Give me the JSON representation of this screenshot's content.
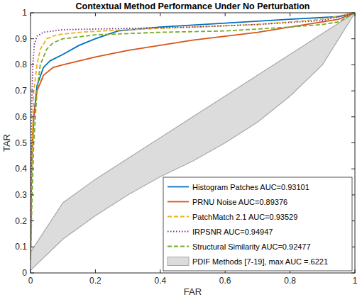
{
  "chart_data": {
    "type": "line",
    "title": "Contextual Method Performance Under No Perturbation",
    "x_label": "FAR",
    "y_label": "TAR",
    "xlim": [
      0,
      1
    ],
    "ylim": [
      0,
      1
    ],
    "xticks": [
      0,
      0.2,
      0.4,
      0.6,
      0.8,
      1
    ],
    "yticks": [
      0,
      0.1,
      0.2,
      0.3,
      0.4,
      0.5,
      0.6,
      0.7,
      0.8,
      0.9,
      1
    ],
    "grid": false,
    "legend": "southeast",
    "series": [
      {
        "name": "Histogram Patches AUC=0.93101",
        "color": "#0072bd",
        "line_style": "solid",
        "x": [
          0,
          0.003,
          0.01,
          0.02,
          0.04,
          0.06,
          0.1,
          0.15,
          0.2,
          0.27,
          0.4,
          0.6,
          0.8,
          0.95,
          1
        ],
        "values": [
          0.05,
          0.4,
          0.6,
          0.72,
          0.79,
          0.815,
          0.84,
          0.875,
          0.9,
          0.93,
          0.945,
          0.96,
          0.975,
          0.985,
          1
        ]
      },
      {
        "name": "PRNU Noise AUC=0.89376",
        "color": "#d95319",
        "line_style": "solid",
        "x": [
          0,
          0.003,
          0.01,
          0.02,
          0.04,
          0.07,
          0.1,
          0.2,
          0.3,
          0.4,
          0.5,
          0.6,
          0.7,
          0.8,
          0.9,
          0.95,
          1
        ],
        "values": [
          0.05,
          0.45,
          0.6,
          0.7,
          0.76,
          0.79,
          0.8,
          0.83,
          0.855,
          0.875,
          0.895,
          0.91,
          0.925,
          0.945,
          0.965,
          0.975,
          1
        ]
      },
      {
        "name": "PatchMatch 2.1 AUC=0.93529",
        "color": "#edb120",
        "line_style": "dashed",
        "x": [
          0,
          0.005,
          0.01,
          0.02,
          0.03,
          0.05,
          0.08,
          0.15,
          0.3,
          0.5,
          0.7,
          0.9,
          1
        ],
        "values": [
          0.05,
          0.5,
          0.7,
          0.8,
          0.86,
          0.9,
          0.915,
          0.925,
          0.935,
          0.945,
          0.955,
          0.975,
          1
        ]
      },
      {
        "name": "IRPSNR AUC=0.94947",
        "color": "#7e2f8e",
        "line_style": "dotted",
        "x": [
          0,
          0.003,
          0.007,
          0.012,
          0.02,
          0.04,
          0.1,
          0.3,
          0.5,
          0.7,
          0.9,
          1
        ],
        "values": [
          0.05,
          0.6,
          0.8,
          0.88,
          0.91,
          0.925,
          0.935,
          0.94,
          0.945,
          0.955,
          0.97,
          1
        ]
      },
      {
        "name": "Structural Similarity AUC=0.92477",
        "color": "#77ac30",
        "line_style": "dashed",
        "x": [
          0,
          0.005,
          0.01,
          0.02,
          0.03,
          0.05,
          0.07,
          0.1,
          0.2,
          0.4,
          0.6,
          0.8,
          0.9,
          0.95,
          1
        ],
        "values": [
          0.05,
          0.3,
          0.5,
          0.7,
          0.8,
          0.86,
          0.885,
          0.9,
          0.915,
          0.925,
          0.93,
          0.945,
          0.955,
          0.965,
          1
        ]
      },
      {
        "name": "PDIF Methods [7-19], max AUC =.6221",
        "color": "#dcdcdc",
        "type": "band",
        "x": [
          0,
          0.1,
          0.2,
          0.3,
          0.4,
          0.5,
          0.6,
          0.7,
          0.8,
          0.9,
          1
        ],
        "values": [
          0.08,
          0.27,
          0.36,
          0.44,
          0.52,
          0.6,
          0.68,
          0.76,
          0.84,
          0.92,
          1
        ],
        "lower": [
          0.01,
          0.13,
          0.22,
          0.3,
          0.37,
          0.43,
          0.5,
          0.58,
          0.68,
          0.8,
          1
        ]
      }
    ]
  }
}
